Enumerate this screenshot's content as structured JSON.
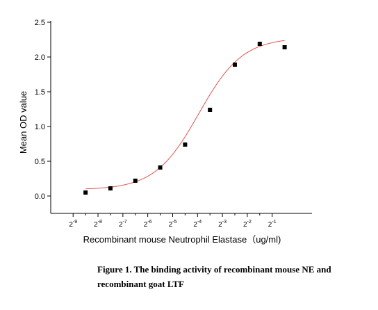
{
  "chart_data": {
    "type": "scatter",
    "xlabel": "Recombinant mouse Neutrophil Elastase（ug/ml)",
    "ylabel": "Mean OD value",
    "x_scale": "log2",
    "x_ticks": [
      {
        "value": -9,
        "label": "2",
        "exp": "-9"
      },
      {
        "value": -8,
        "label": "2",
        "exp": "-8"
      },
      {
        "value": -7,
        "label": "2",
        "exp": "-7"
      },
      {
        "value": -6,
        "label": "2",
        "exp": "-6"
      },
      {
        "value": -5,
        "label": "2",
        "exp": "-5"
      },
      {
        "value": -4,
        "label": "2",
        "exp": "-4"
      },
      {
        "value": -3,
        "label": "2",
        "exp": "-3"
      },
      {
        "value": -2,
        "label": "2",
        "exp": "-2"
      },
      {
        "value": -1,
        "label": "2",
        "exp": "-1"
      }
    ],
    "xlim": [
      -9.9,
      0.6
    ],
    "y_ticks": [
      {
        "value": 0.0,
        "label": "0.0"
      },
      {
        "value": 0.5,
        "label": "0.5"
      },
      {
        "value": 1.0,
        "label": "1.0"
      },
      {
        "value": 1.5,
        "label": "1.5"
      },
      {
        "value": 2.0,
        "label": "2.0"
      },
      {
        "value": 2.5,
        "label": "2.5"
      }
    ],
    "ylim": [
      -0.25,
      2.5
    ],
    "grid": false,
    "series": [
      {
        "marker": "square",
        "color": "#000000",
        "points": [
          {
            "x": -8.5,
            "y": 0.05
          },
          {
            "x": -7.5,
            "y": 0.11
          },
          {
            "x": -6.5,
            "y": 0.22
          },
          {
            "x": -5.5,
            "y": 0.41
          },
          {
            "x": -4.5,
            "y": 0.74
          },
          {
            "x": -3.5,
            "y": 1.24
          },
          {
            "x": -2.5,
            "y": 1.89
          },
          {
            "x": -1.5,
            "y": 2.19
          },
          {
            "x": -0.5,
            "y": 2.14
          }
        ]
      }
    ],
    "fit": {
      "color": "#e0524a",
      "model": "4PL",
      "bottom": 0.09,
      "top": 2.28,
      "x50": -3.95,
      "slope": 0.88,
      "xrange": [
        -8.5,
        -0.5
      ]
    }
  },
  "caption": {
    "line1": "Figure 1. The binding activity of recombinant mouse NE and",
    "line2": "recombinant goat LTF"
  }
}
